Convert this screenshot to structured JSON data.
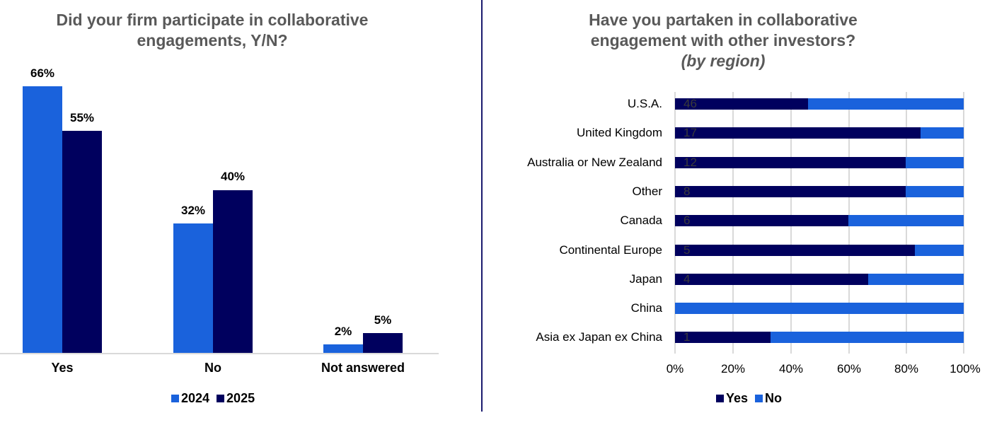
{
  "left_chart": {
    "title_line1": "Did your firm participate in collaborative",
    "title_line2": "engagements, Y/N?",
    "legend": [
      {
        "label": "2024",
        "color": "#1a62dc"
      },
      {
        "label": "2025",
        "color": "#00005e"
      }
    ],
    "groups": [
      {
        "category": "Yes",
        "v2024": "66%",
        "v2025": "55%"
      },
      {
        "category": "No",
        "v2024": "32%",
        "v2025": "40%"
      },
      {
        "category": "Not answered",
        "v2024": "2%",
        "v2025": "5%"
      }
    ]
  },
  "right_chart": {
    "title_line1": "Have you partaken in collaborative",
    "title_line2": "engagement with other investors?",
    "title_line3": "(by region)",
    "legend": [
      {
        "label": "Yes",
        "color": "#00005e"
      },
      {
        "label": "No",
        "color": "#1a62dc"
      }
    ],
    "x_ticks": [
      "0%",
      "20%",
      "40%",
      "60%",
      "80%",
      "100%"
    ],
    "rows": [
      {
        "region": "U.S.A.",
        "count": "46",
        "yes_pct": 46
      },
      {
        "region": "United Kingdom",
        "count": "17",
        "yes_pct": 85
      },
      {
        "region": "Australia or New Zealand",
        "count": "12",
        "yes_pct": 80
      },
      {
        "region": "Other",
        "count": "8",
        "yes_pct": 80
      },
      {
        "region": "Canada",
        "count": "6",
        "yes_pct": 60
      },
      {
        "region": "Continental Europe",
        "count": "5",
        "yes_pct": 83
      },
      {
        "region": "Japan",
        "count": "4",
        "yes_pct": 67
      },
      {
        "region": "China",
        "count": "",
        "yes_pct": 0
      },
      {
        "region": "Asia ex Japan ex China",
        "count": "1",
        "yes_pct": 33
      }
    ]
  },
  "chart_data": [
    {
      "type": "bar",
      "title": "Did your firm participate in collaborative engagements, Y/N?",
      "categories": [
        "Yes",
        "No",
        "Not answered"
      ],
      "series": [
        {
          "name": "2024",
          "values": [
            66,
            32,
            2
          ],
          "color": "#1a62dc"
        },
        {
          "name": "2025",
          "values": [
            55,
            40,
            5
          ],
          "color": "#00005e"
        }
      ],
      "xlabel": "",
      "ylabel": "",
      "value_format": "percent",
      "grid": false,
      "legend_position": "bottom"
    },
    {
      "type": "bar",
      "orientation": "horizontal",
      "stacked": "100%",
      "title": "Have you partaken in collaborative engagement with other investors? (by region)",
      "categories": [
        "U.S.A.",
        "United Kingdom",
        "Australia or New Zealand",
        "Other",
        "Canada",
        "Continental Europe",
        "Japan",
        "China",
        "Asia ex Japan ex China"
      ],
      "series": [
        {
          "name": "Yes",
          "values": [
            46,
            85,
            80,
            80,
            60,
            83,
            67,
            0,
            33
          ],
          "color": "#00005e"
        },
        {
          "name": "No",
          "values": [
            54,
            15,
            20,
            20,
            40,
            17,
            33,
            100,
            67
          ],
          "color": "#1a62dc"
        }
      ],
      "data_labels": [
        "46",
        "17",
        "12",
        "8",
        "6",
        "5",
        "4",
        "",
        "1"
      ],
      "x_ticks": [
        "0%",
        "20%",
        "40%",
        "60%",
        "80%",
        "100%"
      ],
      "xlim": [
        0,
        100
      ],
      "grid": true,
      "legend_position": "bottom"
    }
  ]
}
